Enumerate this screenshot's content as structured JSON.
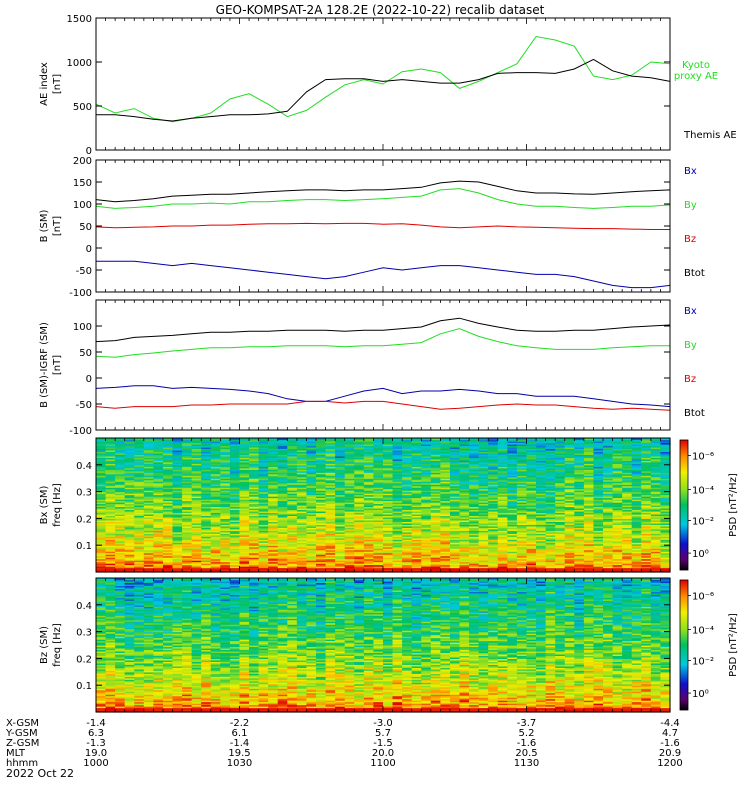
{
  "chart_data": {
    "type": "line",
    "title": "GEO-KOMPSAT-2A 128.2E (2022-10-22) recalib dataset",
    "x_axis": {
      "time_range_minutes": [
        0,
        120
      ],
      "tick_minutes": [
        0,
        30,
        60,
        90,
        120
      ],
      "rows": [
        {
          "label": "X-GSM",
          "values": [
            "-1.4",
            "-2.2",
            "-3.0",
            "-3.7",
            "-4.4"
          ]
        },
        {
          "label": "Y-GSM",
          "values": [
            "6.3",
            "6.1",
            "5.7",
            "5.2",
            "4.7"
          ]
        },
        {
          "label": "Z-GSM",
          "values": [
            "-1.3",
            "-1.4",
            "-1.5",
            "-1.6",
            "-1.6"
          ]
        },
        {
          "label": "MLT",
          "values": [
            "19.0",
            "19.5",
            "20.0",
            "20.5",
            "20.9"
          ]
        },
        {
          "label": "hhmm",
          "values": [
            "1000",
            "1030",
            "1100",
            "1130",
            "1200"
          ]
        }
      ],
      "date_label": "2022 Oct 22"
    },
    "panels": [
      {
        "id": "ae",
        "ylabel_lines": [
          "AE index",
          "[nT]"
        ],
        "ylim": [
          0,
          1500
        ],
        "yticks": [
          0,
          500,
          1000,
          1500
        ],
        "series": [
          {
            "name": "Kyoto proxy AE",
            "legend_lines": [
              "Kyoto",
              "proxy AE"
            ],
            "color": "#22dd22",
            "x": [
              0,
              4,
              8,
              12,
              16,
              20,
              24,
              28,
              32,
              36,
              40,
              44,
              48,
              52,
              56,
              60,
              64,
              68,
              72,
              76,
              80,
              84,
              88,
              92,
              96,
              100,
              104,
              108,
              112,
              116,
              120
            ],
            "y": [
              520,
              420,
              470,
              360,
              320,
              360,
              420,
              580,
              640,
              520,
              380,
              450,
              600,
              740,
              800,
              750,
              890,
              920,
              880,
              700,
              780,
              880,
              980,
              1290,
              1250,
              1180,
              840,
              800,
              850,
              1000,
              980
            ]
          },
          {
            "name": "Themis AE",
            "legend_lines": [
              "Themis AE"
            ],
            "color": "#000000",
            "x": [
              0,
              4,
              8,
              12,
              16,
              20,
              24,
              28,
              32,
              36,
              40,
              44,
              48,
              52,
              56,
              60,
              64,
              68,
              72,
              76,
              80,
              84,
              88,
              92,
              96,
              100,
              104,
              108,
              112,
              116,
              120
            ],
            "y": [
              400,
              400,
              380,
              350,
              330,
              360,
              380,
              400,
              400,
              410,
              440,
              660,
              800,
              810,
              810,
              780,
              800,
              780,
              760,
              760,
              800,
              870,
              880,
              880,
              870,
              920,
              1030,
              900,
              840,
              820,
              780
            ]
          }
        ]
      },
      {
        "id": "b_sm",
        "ylabel_lines": [
          "B (SM)",
          "[nT]"
        ],
        "ylim": [
          -100,
          200
        ],
        "yticks": [
          -100,
          -50,
          0,
          50,
          100,
          150,
          200
        ],
        "series": [
          {
            "name": "Bx",
            "color": "#0000aa",
            "x": [
              0,
              4,
              8,
              12,
              16,
              20,
              24,
              28,
              32,
              36,
              40,
              44,
              48,
              52,
              56,
              60,
              64,
              68,
              72,
              76,
              80,
              84,
              88,
              92,
              96,
              100,
              104,
              108,
              112,
              116,
              120
            ],
            "y": [
              -30,
              -30,
              -30,
              -35,
              -40,
              -35,
              -40,
              -45,
              -50,
              -55,
              -60,
              -65,
              -70,
              -65,
              -55,
              -45,
              -50,
              -45,
              -40,
              -40,
              -45,
              -50,
              -55,
              -60,
              -60,
              -65,
              -75,
              -85,
              -90,
              -90,
              -85
            ]
          },
          {
            "name": "By",
            "color": "#22dd22",
            "x": [
              0,
              4,
              8,
              12,
              16,
              20,
              24,
              28,
              32,
              36,
              40,
              44,
              48,
              52,
              56,
              60,
              64,
              68,
              72,
              76,
              80,
              84,
              88,
              92,
              96,
              100,
              104,
              108,
              112,
              116,
              120
            ],
            "y": [
              95,
              90,
              92,
              95,
              100,
              100,
              102,
              100,
              105,
              105,
              108,
              110,
              110,
              108,
              110,
              112,
              115,
              118,
              132,
              135,
              125,
              110,
              100,
              95,
              95,
              92,
              90,
              92,
              95,
              95,
              98
            ]
          },
          {
            "name": "Bz",
            "color": "#dd0000",
            "x": [
              0,
              4,
              8,
              12,
              16,
              20,
              24,
              28,
              32,
              36,
              40,
              44,
              48,
              52,
              56,
              60,
              64,
              68,
              72,
              76,
              80,
              84,
              88,
              92,
              96,
              100,
              104,
              108,
              112,
              116,
              120
            ],
            "y": [
              48,
              46,
              47,
              48,
              50,
              50,
              52,
              52,
              54,
              55,
              55,
              56,
              55,
              56,
              56,
              54,
              55,
              52,
              48,
              46,
              48,
              50,
              48,
              47,
              46,
              45,
              44,
              44,
              43,
              42,
              42
            ]
          },
          {
            "name": "Btot",
            "color": "#000000",
            "x": [
              0,
              4,
              8,
              12,
              16,
              20,
              24,
              28,
              32,
              36,
              40,
              44,
              48,
              52,
              56,
              60,
              64,
              68,
              72,
              76,
              80,
              84,
              88,
              92,
              96,
              100,
              104,
              108,
              112,
              116,
              120
            ],
            "y": [
              110,
              105,
              108,
              112,
              118,
              120,
              122,
              122,
              125,
              128,
              130,
              132,
              132,
              130,
              132,
              132,
              135,
              138,
              148,
              152,
              150,
              140,
              130,
              125,
              125,
              123,
              122,
              125,
              128,
              130,
              132
            ]
          }
        ]
      },
      {
        "id": "b_sm_igrf",
        "ylabel_lines": [
          "B (SM)-IGRF (SM)",
          "[nT]"
        ],
        "ylim": [
          -100,
          150
        ],
        "yticks": [
          -100,
          -50,
          0,
          50,
          100
        ],
        "series": [
          {
            "name": "Bx",
            "color": "#0000aa",
            "x": [
              0,
              4,
              8,
              12,
              16,
              20,
              24,
              28,
              32,
              36,
              40,
              44,
              48,
              52,
              56,
              60,
              64,
              68,
              72,
              76,
              80,
              84,
              88,
              92,
              96,
              100,
              104,
              108,
              112,
              116,
              120
            ],
            "y": [
              -20,
              -18,
              -15,
              -15,
              -20,
              -18,
              -20,
              -22,
              -25,
              -30,
              -40,
              -45,
              -45,
              -35,
              -25,
              -20,
              -30,
              -25,
              -25,
              -22,
              -25,
              -30,
              -30,
              -35,
              -35,
              -35,
              -40,
              -45,
              -50,
              -52,
              -55
            ]
          },
          {
            "name": "By",
            "color": "#22dd22",
            "x": [
              0,
              4,
              8,
              12,
              16,
              20,
              24,
              28,
              32,
              36,
              40,
              44,
              48,
              52,
              56,
              60,
              64,
              68,
              72,
              76,
              80,
              84,
              88,
              92,
              96,
              100,
              104,
              108,
              112,
              116,
              120
            ],
            "y": [
              42,
              40,
              45,
              48,
              52,
              55,
              58,
              58,
              60,
              60,
              62,
              62,
              62,
              60,
              62,
              62,
              65,
              68,
              85,
              95,
              80,
              70,
              62,
              58,
              55,
              55,
              55,
              58,
              60,
              62,
              62
            ]
          },
          {
            "name": "Bz",
            "color": "#dd0000",
            "x": [
              0,
              4,
              8,
              12,
              16,
              20,
              24,
              28,
              32,
              36,
              40,
              44,
              48,
              52,
              56,
              60,
              64,
              68,
              72,
              76,
              80,
              84,
              88,
              92,
              96,
              100,
              104,
              108,
              112,
              116,
              120
            ],
            "y": [
              -55,
              -58,
              -55,
              -55,
              -55,
              -52,
              -52,
              -50,
              -50,
              -50,
              -50,
              -45,
              -45,
              -48,
              -45,
              -45,
              -50,
              -55,
              -60,
              -58,
              -55,
              -52,
              -50,
              -52,
              -52,
              -55,
              -58,
              -60,
              -58,
              -60,
              -62
            ]
          },
          {
            "name": "Btot",
            "color": "#000000",
            "x": [
              0,
              4,
              8,
              12,
              16,
              20,
              24,
              28,
              32,
              36,
              40,
              44,
              48,
              52,
              56,
              60,
              64,
              68,
              72,
              76,
              80,
              84,
              88,
              92,
              96,
              100,
              104,
              108,
              112,
              116,
              120
            ],
            "y": [
              70,
              72,
              78,
              80,
              82,
              85,
              88,
              88,
              90,
              90,
              92,
              92,
              92,
              90,
              92,
              92,
              95,
              98,
              110,
              115,
              105,
              98,
              92,
              90,
              90,
              92,
              92,
              95,
              98,
              100,
              102
            ]
          }
        ]
      },
      {
        "id": "bx_spec",
        "type": "heatmap",
        "ylabel_lines": [
          "Bx (SM)",
          "freq [Hz]"
        ],
        "ylim": [
          0,
          0.5
        ],
        "yticks": [
          0.1,
          0.2,
          0.3,
          0.4
        ],
        "colorbar": {
          "label": "PSD [nT²/Hz]",
          "tick_labels": [
            "10⁰",
            "10⁻²",
            "10⁻⁴",
            "10⁻⁶"
          ]
        }
      },
      {
        "id": "bz_spec",
        "type": "heatmap",
        "ylabel_lines": [
          "Bz (SM)",
          "freq [Hz]"
        ],
        "ylim": [
          0,
          0.5
        ],
        "yticks": [
          0.1,
          0.2,
          0.3,
          0.4
        ],
        "colorbar": {
          "label": "PSD [nT²/Hz]",
          "tick_labels": [
            "10⁰",
            "10⁻²",
            "10⁻⁴",
            "10⁻⁶"
          ]
        }
      }
    ]
  }
}
